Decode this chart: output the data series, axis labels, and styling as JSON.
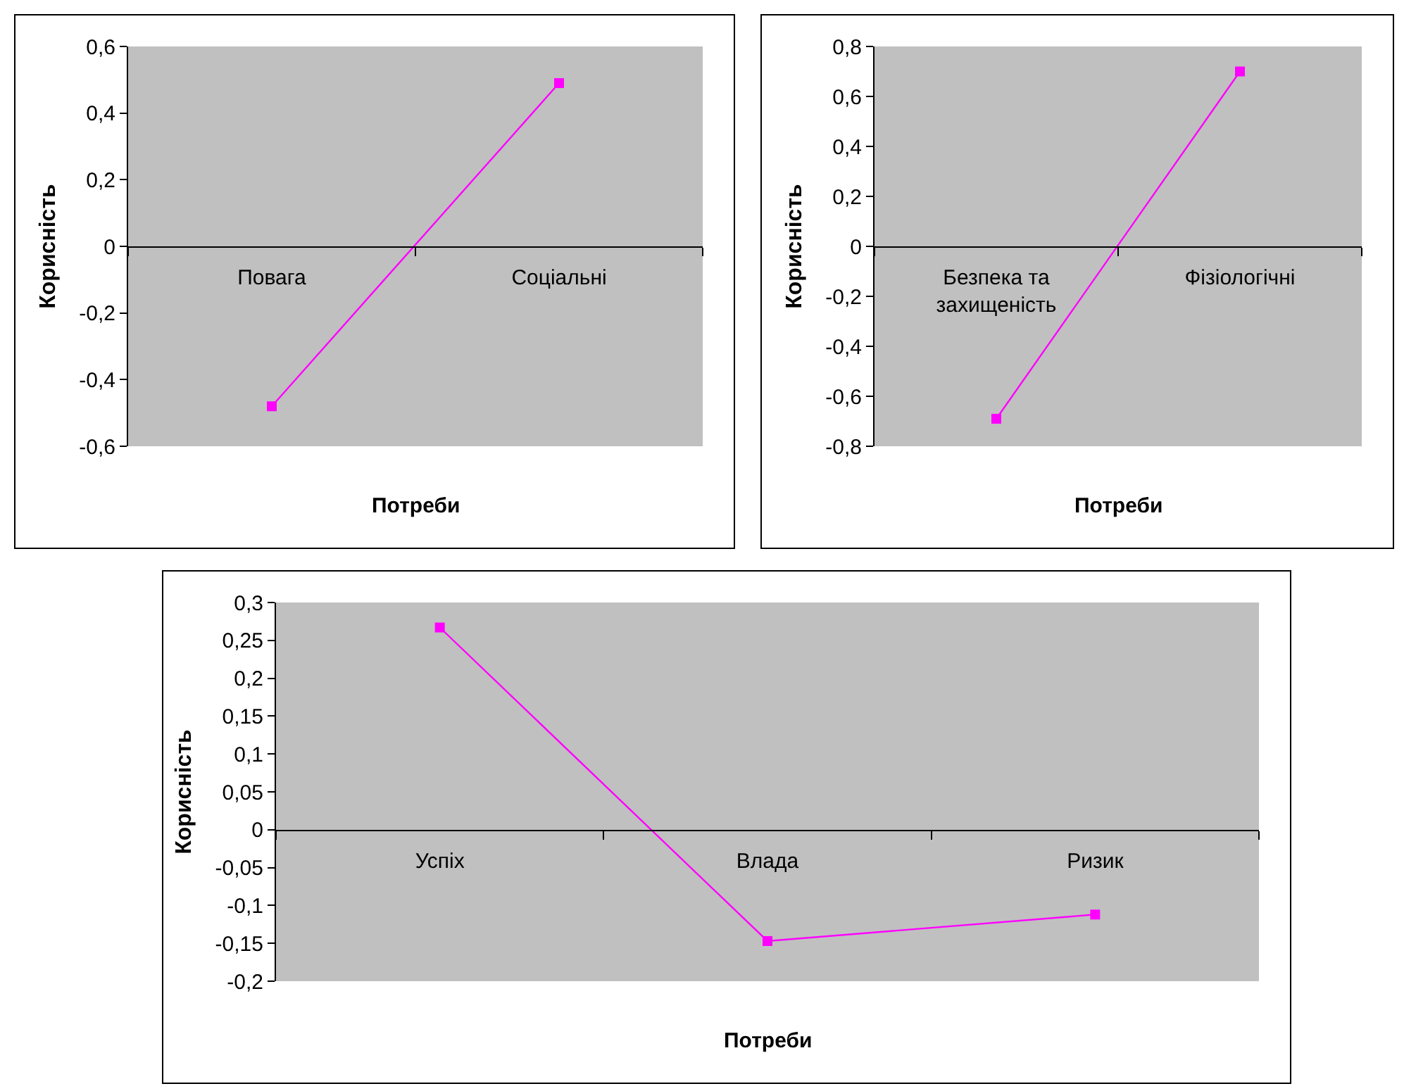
{
  "chart_data": [
    {
      "type": "line",
      "xlabel": "Потреби",
      "ylabel": "Корисність",
      "categories": [
        "Повага",
        "Соціальні"
      ],
      "series": [
        {
          "color": "#ff00ff",
          "values": [
            -0.48,
            0.49
          ]
        }
      ],
      "ylim": [
        -0.6,
        0.6
      ],
      "yticks": [
        {
          "value": -0.6,
          "label": "-0,6"
        },
        {
          "value": -0.4,
          "label": "-0,4"
        },
        {
          "value": -0.2,
          "label": "-0,2"
        },
        {
          "value": 0,
          "label": "0"
        },
        {
          "value": 0.2,
          "label": "0,2"
        },
        {
          "value": 0.4,
          "label": "0,4"
        },
        {
          "value": 0.6,
          "label": "0,6"
        }
      ],
      "grid": false,
      "marker": "square",
      "line_style": "solid"
    },
    {
      "type": "line",
      "xlabel": "Потреби",
      "ylabel": "Корисність",
      "categories": [
        "Безпека та захищеність",
        "Фізіологічні"
      ],
      "series": [
        {
          "color": "#ff00ff",
          "values": [
            -0.69,
            0.7
          ]
        }
      ],
      "ylim": [
        -0.8,
        0.8
      ],
      "yticks": [
        {
          "value": -0.8,
          "label": "-0,8"
        },
        {
          "value": -0.6,
          "label": "-0,6"
        },
        {
          "value": -0.4,
          "label": "-0,4"
        },
        {
          "value": -0.2,
          "label": "-0,2"
        },
        {
          "value": 0,
          "label": "0"
        },
        {
          "value": 0.2,
          "label": "0,2"
        },
        {
          "value": 0.4,
          "label": "0,4"
        },
        {
          "value": 0.6,
          "label": "0,6"
        },
        {
          "value": 0.8,
          "label": "0,8"
        }
      ],
      "grid": false,
      "marker": "square",
      "line_style": "solid"
    },
    {
      "type": "line",
      "xlabel": "Потреби",
      "ylabel": "Корисність",
      "categories": [
        "Успіх",
        "Влада",
        "Ризик"
      ],
      "series": [
        {
          "color": "#ff00ff",
          "values": [
            0.267,
            -0.147,
            -0.112
          ]
        }
      ],
      "ylim": [
        -0.2,
        0.3
      ],
      "yticks": [
        {
          "value": -0.2,
          "label": "-0,2"
        },
        {
          "value": -0.15,
          "label": "-0,15"
        },
        {
          "value": -0.1,
          "label": "-0,1"
        },
        {
          "value": -0.05,
          "label": "-0,05"
        },
        {
          "value": 0,
          "label": "0"
        },
        {
          "value": 0.05,
          "label": "0,05"
        },
        {
          "value": 0.1,
          "label": "0,1"
        },
        {
          "value": 0.15,
          "label": "0,15"
        },
        {
          "value": 0.2,
          "label": "0,2"
        },
        {
          "value": 0.25,
          "label": "0,25"
        },
        {
          "value": 0.3,
          "label": "0,3"
        }
      ],
      "grid": false,
      "marker": "square",
      "line_style": "solid"
    }
  ]
}
